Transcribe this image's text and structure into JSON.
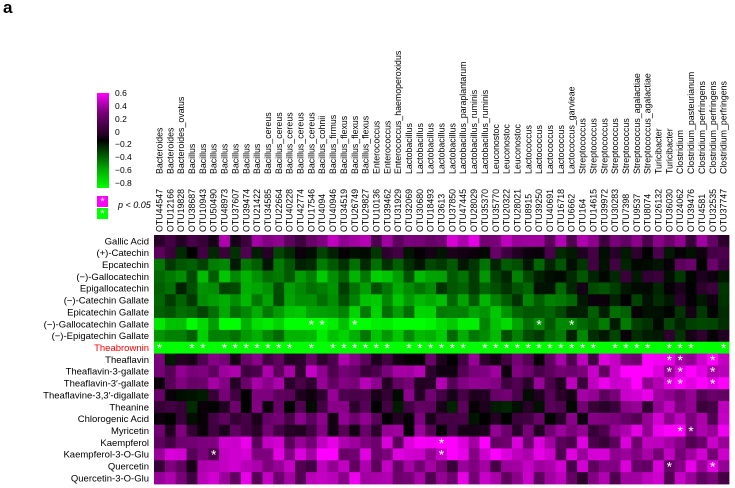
{
  "panel_label": "a",
  "legend": {
    "ticks": [
      "0.6",
      "0.4",
      "0.2",
      "0",
      "−0.2",
      "−0.4",
      "−0.6",
      "−0.8"
    ],
    "tick_values": [
      0.6,
      0.4,
      0.2,
      0,
      -0.2,
      -0.4,
      -0.6,
      -0.8
    ],
    "significance_symbol": "*",
    "significance_label": "p < 0.05",
    "colors": {
      "positive": "#ff00ff",
      "zero": "#000000",
      "negative": "#00ff00",
      "highlight": "#ff0000"
    }
  },
  "chart_data": {
    "type": "heatmap",
    "title": "",
    "xlabel": "",
    "ylabel": "",
    "value_range": [
      -0.8,
      0.6
    ],
    "columns": [
      {
        "otu": "OTU44547",
        "genus": "Bacteroides"
      },
      {
        "otu": "OTU12166",
        "genus": "Bacteroides"
      },
      {
        "otu": "OTU19828",
        "genus": "Bacteroides_ovatus"
      },
      {
        "otu": "OTU38687",
        "genus": "Bacillus"
      },
      {
        "otu": "OTU10943",
        "genus": "Bacillus"
      },
      {
        "otu": "OTU50490",
        "genus": "Bacillus"
      },
      {
        "otu": "OTU48973",
        "genus": "Bacillus"
      },
      {
        "otu": "OTU37607",
        "genus": "Bacillus"
      },
      {
        "otu": "OTU39474",
        "genus": "Bacillus"
      },
      {
        "otu": "OTU21422",
        "genus": "Bacillus"
      },
      {
        "otu": "OTU34585",
        "genus": "Bacillus_cereus"
      },
      {
        "otu": "OTU22664",
        "genus": "Bacillus_cereus"
      },
      {
        "otu": "OTU40228",
        "genus": "Bacillus_cereus"
      },
      {
        "otu": "OTU42774",
        "genus": "Bacillus_cereus"
      },
      {
        "otu": "OTU17546",
        "genus": "Bacillus_cereus"
      },
      {
        "otu": "OTU4094",
        "genus": "Bacillus_cohnii"
      },
      {
        "otu": "OTU40946",
        "genus": "Bacillus_firmus"
      },
      {
        "otu": "OTU34519",
        "genus": "Bacillus_flexus"
      },
      {
        "otu": "OTU26749",
        "genus": "Bacillus_flexus"
      },
      {
        "otu": "OTU29827",
        "genus": "Bacillus_flexus"
      },
      {
        "otu": "OTU10136",
        "genus": "Enterococcus"
      },
      {
        "otu": "OTU39462",
        "genus": "Enterococcus"
      },
      {
        "otu": "OTU31929",
        "genus": "Enterococcus_haemoperoxidus"
      },
      {
        "otu": "OTU32069",
        "genus": "Lactobacillus"
      },
      {
        "otu": "OTU30680",
        "genus": "Lactobacillus"
      },
      {
        "otu": "OTU18493",
        "genus": "Lactobacillus"
      },
      {
        "otu": "OTU3613",
        "genus": "Lactobacillus"
      },
      {
        "otu": "OTU37850",
        "genus": "Lactobacillus"
      },
      {
        "otu": "OTU47445",
        "genus": "Lactobacillus_paraplantarum"
      },
      {
        "otu": "OTU28029",
        "genus": "Lactobacillus_ruminis"
      },
      {
        "otu": "OTU35370",
        "genus": "Lactobacillus_ruminis"
      },
      {
        "otu": "OTU35770",
        "genus": "Leuconostoc"
      },
      {
        "otu": "OTU20322",
        "genus": "Leuconostoc"
      },
      {
        "otu": "OTU28021",
        "genus": "Leuconostoc"
      },
      {
        "otu": "OTU8915",
        "genus": "Lactococcus"
      },
      {
        "otu": "OTU39250",
        "genus": "Lactococcus"
      },
      {
        "otu": "OTU40691",
        "genus": "Lactococcus"
      },
      {
        "otu": "OTU16718",
        "genus": "Lactococcus"
      },
      {
        "otu": "OTU6662",
        "genus": "Lactococcus_garvieae"
      },
      {
        "otu": "OTU164",
        "genus": "Streptococcus"
      },
      {
        "otu": "OTU14615",
        "genus": "Streptococcus"
      },
      {
        "otu": "OTU39972",
        "genus": "Streptococcus"
      },
      {
        "otu": "OTU30283",
        "genus": "Streptococcus"
      },
      {
        "otu": "OTU7398",
        "genus": "Streptococcus"
      },
      {
        "otu": "OTU9537",
        "genus": "Streptococcus_agalactiae"
      },
      {
        "otu": "OTU8074",
        "genus": "Streptococcus_agalactiae"
      },
      {
        "otu": "OTU26132",
        "genus": "Turicibacter"
      },
      {
        "otu": "OTU36030",
        "genus": "Turicibacter"
      },
      {
        "otu": "OTU24062",
        "genus": "Clostridium"
      },
      {
        "otu": "OTU39476",
        "genus": "Clostridium_pasteurianum"
      },
      {
        "otu": "OTU4581",
        "genus": "Clostridium_perfringens"
      },
      {
        "otu": "OTU32535",
        "genus": "Clostridium_perfringens"
      },
      {
        "otu": "OTU37747",
        "genus": "Clostridium_perfringens"
      }
    ],
    "rows": [
      "Gallic Acid",
      "(+)-Catechin",
      "Epcatechin",
      "(−)-Gallocatechin",
      "Epigallocatechin",
      "(−)-Catechin Gallate",
      "Epicatechin Gallate",
      "(−)-Gallocatechin Gallate",
      "(−)-Epigatechin Gallate",
      "Theabrownin",
      "Theaflavin",
      "Theaflavin-3-gallate",
      "Theaflavin-3′-gallate",
      "Theaflavine-3,3′-digallate",
      "Theanine",
      "Chlorogenic Acid",
      "Myricetin",
      "Kaempferol",
      "Kaempferol-3-O-Glu",
      "Quercetin",
      "Quercetin-3-O-Glu"
    ],
    "highlighted_row": "Theabrownin",
    "row_profiles": [
      [
        0.3,
        0.2,
        0.25,
        0.3,
        0.35,
        0.3,
        0.25,
        0.3
      ],
      [
        0.05,
        0.0,
        -0.05,
        0.0,
        0.05,
        0.05,
        0.1,
        0.15
      ],
      [
        -0.2,
        -0.25,
        -0.3,
        -0.25,
        -0.2,
        -0.1,
        0.05,
        0.1
      ],
      [
        -0.35,
        -0.45,
        -0.5,
        -0.45,
        -0.35,
        -0.2,
        0.0,
        0.05
      ],
      [
        -0.25,
        -0.35,
        -0.4,
        -0.35,
        -0.3,
        -0.15,
        -0.05,
        0.0
      ],
      [
        -0.3,
        -0.4,
        -0.45,
        -0.45,
        -0.4,
        -0.25,
        -0.05,
        0.0
      ],
      [
        -0.35,
        -0.45,
        -0.55,
        -0.5,
        -0.45,
        -0.3,
        -0.1,
        -0.05
      ],
      [
        -0.6,
        -0.7,
        -0.75,
        -0.7,
        -0.6,
        -0.45,
        -0.2,
        -0.1
      ],
      [
        -0.4,
        -0.5,
        -0.55,
        -0.5,
        -0.45,
        -0.3,
        -0.1,
        -0.05
      ],
      [
        -0.85,
        -0.85,
        -0.85,
        -0.85,
        -0.85,
        -0.85,
        -0.85,
        -0.85
      ],
      [
        0.1,
        0.2,
        0.25,
        0.2,
        0.15,
        0.2,
        0.45,
        0.5
      ],
      [
        0.15,
        0.25,
        0.3,
        0.25,
        0.2,
        0.25,
        0.5,
        0.55
      ],
      [
        0.15,
        0.25,
        0.3,
        0.25,
        0.2,
        0.25,
        0.5,
        0.55
      ],
      [
        0.05,
        0.15,
        0.2,
        0.15,
        0.1,
        0.15,
        0.35,
        0.4
      ],
      [
        0.0,
        0.1,
        0.15,
        0.1,
        0.05,
        0.1,
        0.25,
        0.3
      ],
      [
        0.05,
        0.1,
        0.15,
        0.15,
        0.1,
        0.15,
        0.3,
        0.3
      ],
      [
        0.1,
        0.15,
        0.2,
        0.2,
        0.15,
        0.2,
        0.45,
        0.5
      ],
      [
        0.25,
        0.35,
        0.4,
        0.4,
        0.45,
        0.35,
        0.3,
        0.3
      ],
      [
        0.3,
        0.4,
        0.45,
        0.4,
        0.45,
        0.35,
        0.3,
        0.3
      ],
      [
        0.2,
        0.3,
        0.35,
        0.35,
        0.3,
        0.3,
        0.35,
        0.4
      ],
      [
        0.25,
        0.35,
        0.4,
        0.35,
        0.35,
        0.3,
        0.3,
        0.35
      ]
    ],
    "significant_cells": [
      {
        "row": "(−)-Gallocatechin Gallate",
        "columns": [
          14,
          15,
          18,
          35,
          38
        ]
      },
      {
        "row": "Theabrownin",
        "columns": [
          0,
          3,
          4,
          6,
          7,
          8,
          9,
          10,
          11,
          12,
          14,
          16,
          17,
          18,
          19,
          20,
          21,
          23,
          24,
          25,
          26,
          27,
          28,
          30,
          31,
          32,
          33,
          34,
          35,
          36,
          37,
          38,
          39,
          40,
          42,
          43,
          44,
          45,
          47,
          48,
          49,
          52
        ]
      },
      {
        "row": "Theaflavin",
        "columns": [
          47,
          48,
          51
        ]
      },
      {
        "row": "Theaflavin-3-gallate",
        "columns": [
          47,
          48,
          51
        ]
      },
      {
        "row": "Theaflavin-3′-gallate",
        "columns": [
          47,
          48,
          51
        ]
      },
      {
        "row": "Myricetin",
        "columns": [
          48,
          49
        ]
      },
      {
        "row": "Kaempferol",
        "columns": [
          26
        ]
      },
      {
        "row": "Kaempferol-3-O-Glu",
        "columns": [
          5,
          26
        ]
      },
      {
        "row": "Quercetin",
        "columns": [
          47,
          51
        ]
      }
    ]
  }
}
